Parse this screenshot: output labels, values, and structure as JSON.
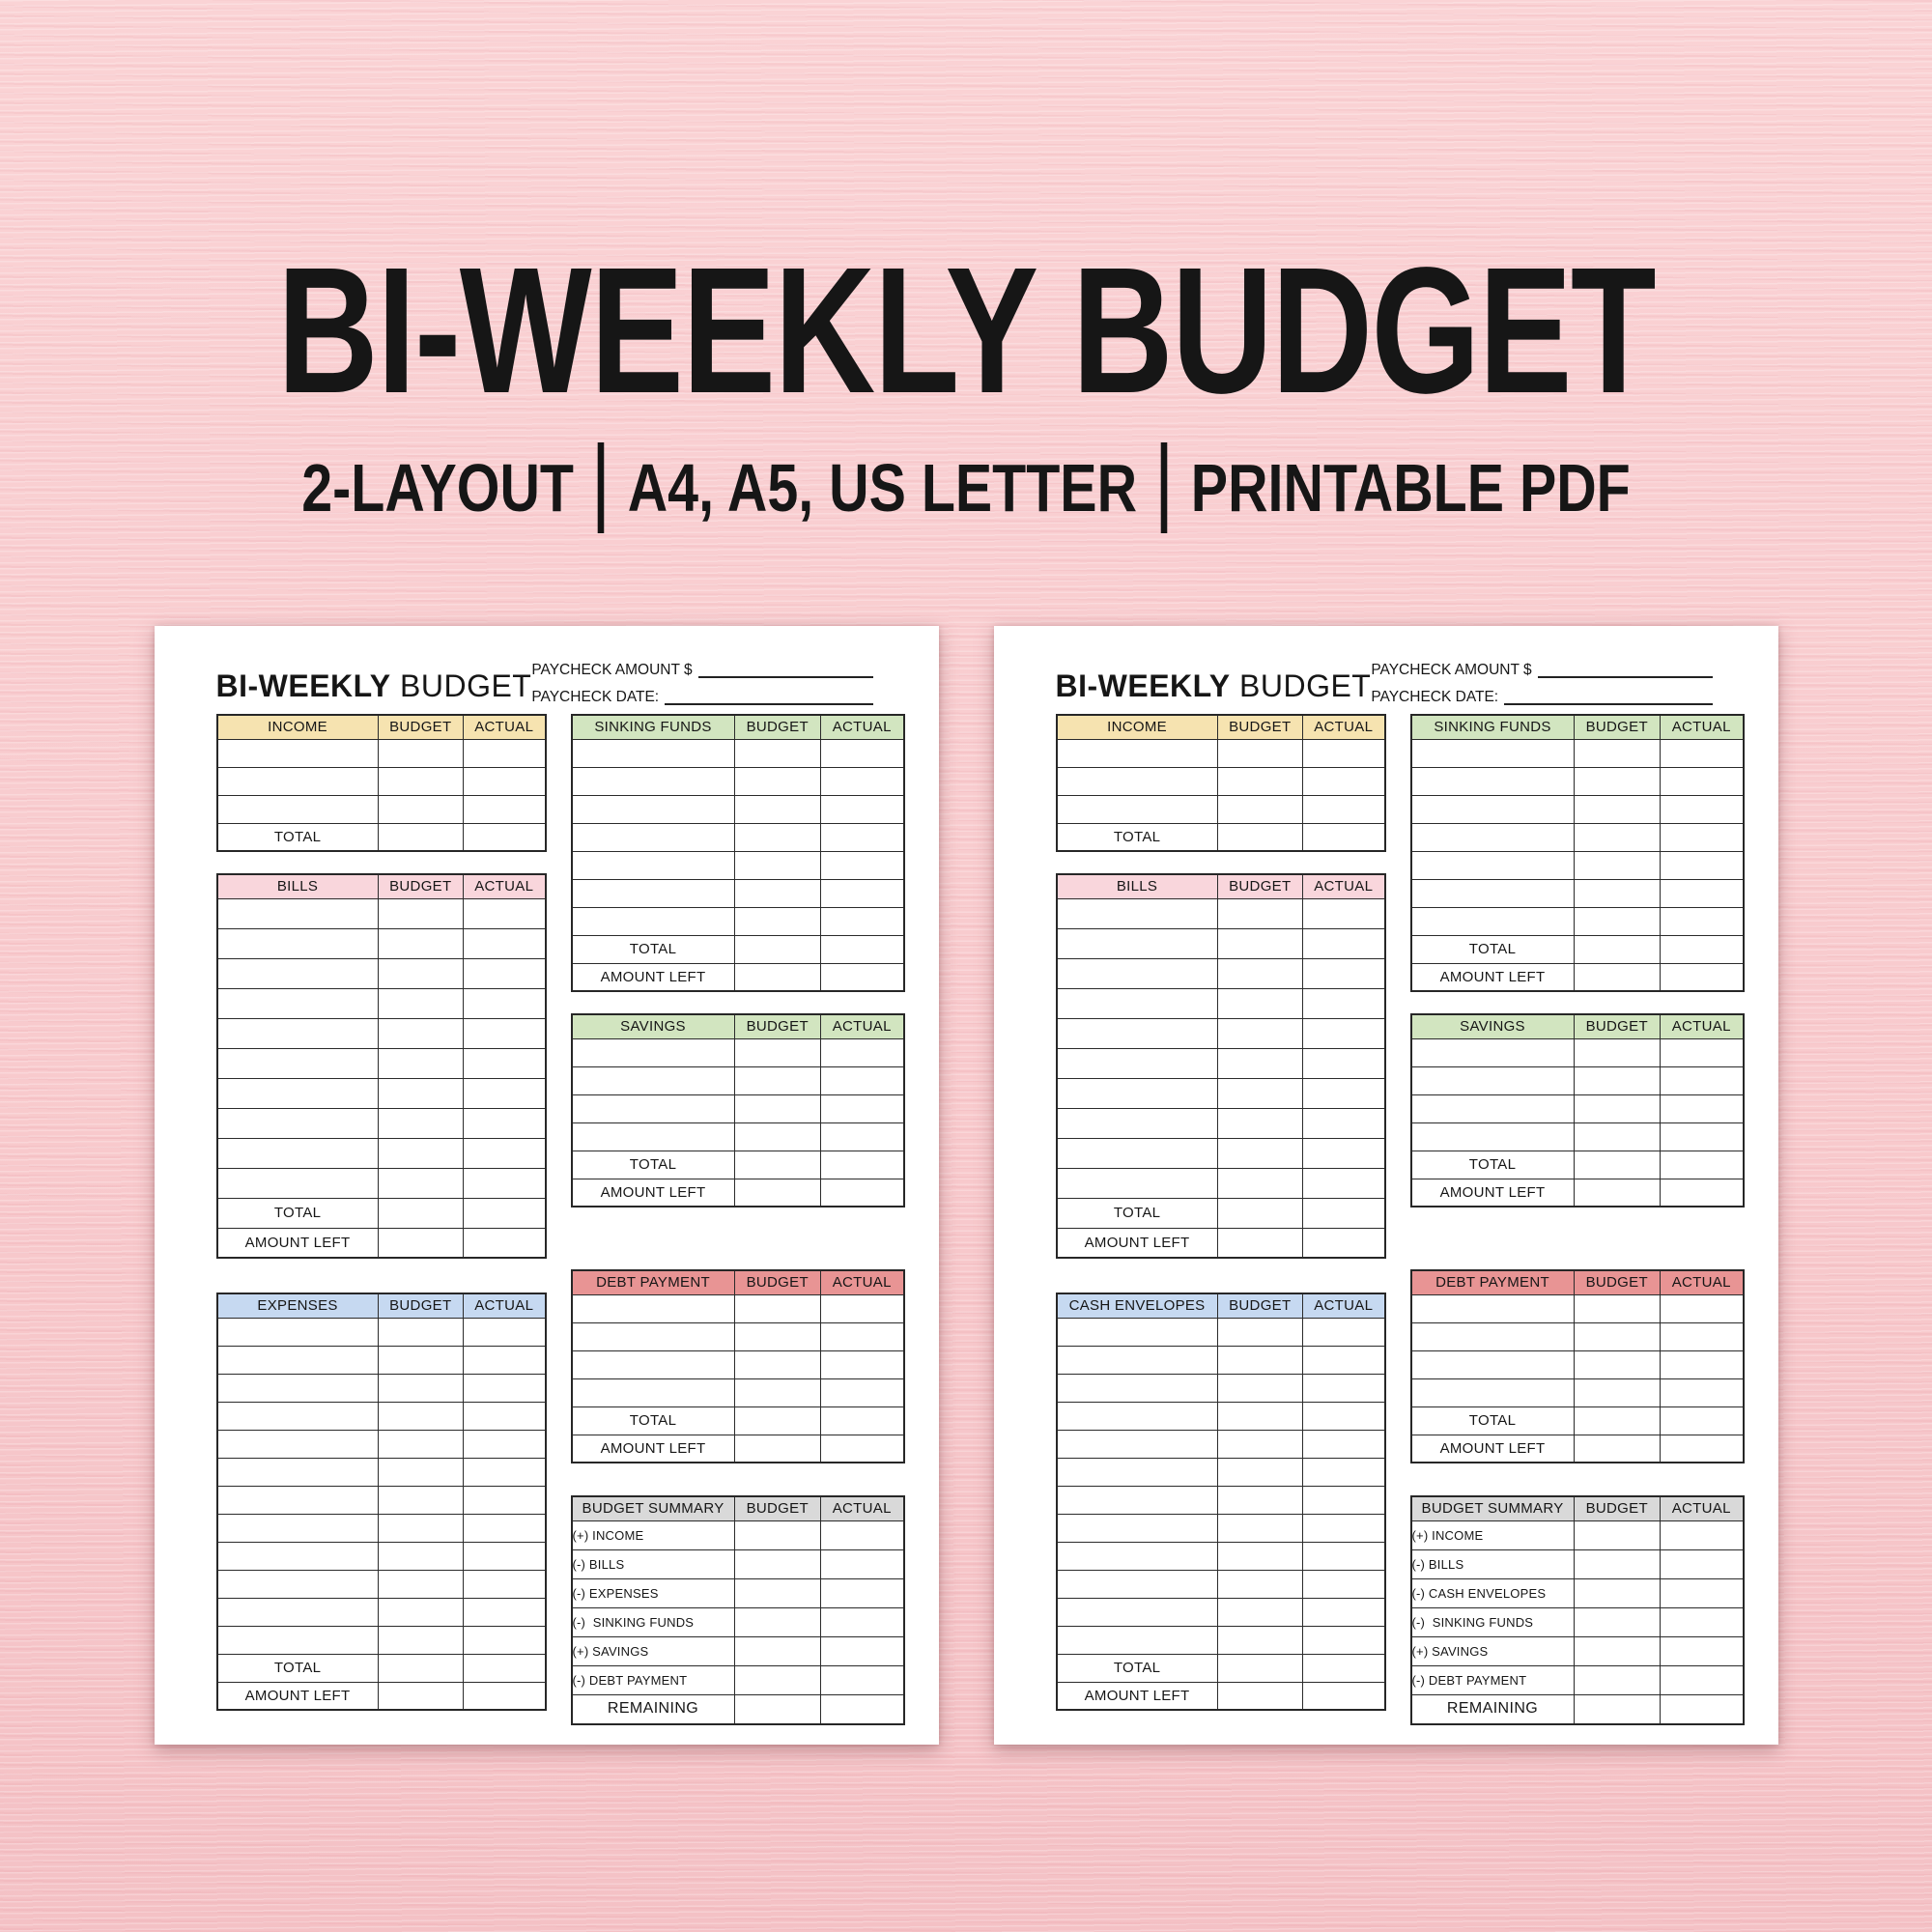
{
  "hero": {
    "title": "BI-WEEKLY BUDGET",
    "subtitle": [
      "2-LAYOUT",
      "A4, A5, US LETTER",
      "PRINTABLE PDF"
    ]
  },
  "page_header": {
    "title_bold": "BI-WEEKLY",
    "title_regular": " BUDGET",
    "paycheck_amount_label": "PAYCHECK AMOUNT $",
    "paycheck_date_label": "PAYCHECK DATE:"
  },
  "column_headers": {
    "budget": "BUDGET",
    "actual": "ACTUAL"
  },
  "colors": {
    "background_pink": "#f8cbcd",
    "yellow": "#f6e3b0",
    "pink": "#f9d6dc",
    "blue": "#c6d9f1",
    "green": "#d2e5c0",
    "red": "#e89494",
    "gray": "#d9d9d9"
  },
  "pages": [
    {
      "left_tables": [
        {
          "title": "INCOME",
          "color": "yellow",
          "empty_rows": 3,
          "footer_rows": [
            "TOTAL"
          ]
        },
        {
          "title": "BILLS",
          "color": "pink",
          "empty_rows": 10,
          "footer_rows": [
            "TOTAL",
            "AMOUNT LEFT"
          ]
        },
        {
          "title": "EXPENSES",
          "color": "blue",
          "empty_rows": 12,
          "footer_rows": [
            "TOTAL",
            "AMOUNT LEFT"
          ]
        }
      ],
      "right_tables": [
        {
          "title": "SINKING FUNDS",
          "color": "green",
          "empty_rows": 7,
          "footer_rows": [
            "TOTAL",
            "AMOUNT LEFT"
          ]
        },
        {
          "title": "SAVINGS",
          "color": "green",
          "empty_rows": 4,
          "footer_rows": [
            "TOTAL",
            "AMOUNT LEFT"
          ]
        },
        {
          "title": "DEBT PAYMENT",
          "color": "red",
          "empty_rows": 4,
          "footer_rows": [
            "TOTAL",
            "AMOUNT LEFT"
          ]
        },
        {
          "title": "BUDGET SUMMARY",
          "color": "gray",
          "label_rows": [
            "(+) INCOME",
            "(-) BILLS",
            "(-) EXPENSES",
            "(-)  SINKING FUNDS",
            "(+) SAVINGS",
            "(-) DEBT PAYMENT"
          ],
          "footer_rows": [
            "REMAINING"
          ]
        }
      ]
    },
    {
      "left_tables": [
        {
          "title": "INCOME",
          "color": "yellow",
          "empty_rows": 3,
          "footer_rows": [
            "TOTAL"
          ]
        },
        {
          "title": "BILLS",
          "color": "pink",
          "empty_rows": 10,
          "footer_rows": [
            "TOTAL",
            "AMOUNT LEFT"
          ]
        },
        {
          "title": "CASH ENVELOPES",
          "color": "blue",
          "empty_rows": 12,
          "footer_rows": [
            "TOTAL",
            "AMOUNT LEFT"
          ]
        }
      ],
      "right_tables": [
        {
          "title": "SINKING FUNDS",
          "color": "green",
          "empty_rows": 7,
          "footer_rows": [
            "TOTAL",
            "AMOUNT LEFT"
          ]
        },
        {
          "title": "SAVINGS",
          "color": "green",
          "empty_rows": 4,
          "footer_rows": [
            "TOTAL",
            "AMOUNT LEFT"
          ]
        },
        {
          "title": "DEBT PAYMENT",
          "color": "red",
          "empty_rows": 4,
          "footer_rows": [
            "TOTAL",
            "AMOUNT LEFT"
          ]
        },
        {
          "title": "BUDGET SUMMARY",
          "color": "gray",
          "label_rows": [
            "(+) INCOME",
            "(-) BILLS",
            "(-) CASH ENVELOPES",
            "(-)  SINKING FUNDS",
            "(+) SAVINGS",
            "(-) DEBT PAYMENT"
          ],
          "footer_rows": [
            "REMAINING"
          ]
        }
      ]
    }
  ]
}
